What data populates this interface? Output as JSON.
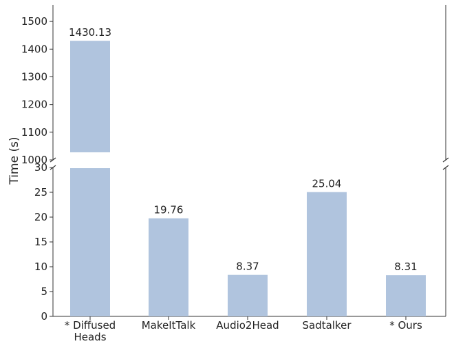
{
  "chart_data": {
    "type": "bar",
    "broken_y_axis": true,
    "categories": [
      "* Diffused\nHeads",
      "MakeItTalk",
      "Audio2Head",
      "Sadtalker",
      "* Ours"
    ],
    "values": [
      1430.13,
      19.76,
      8.37,
      25.04,
      8.31
    ],
    "value_labels": [
      "1430.13",
      "19.76",
      "8.37",
      "25.04",
      "8.31"
    ],
    "ylabel": "Time (s)",
    "ylim_upper": [
      1000,
      1560
    ],
    "ylim_lower": [
      0,
      30
    ],
    "yticks_upper": [
      1000,
      1100,
      1200,
      1300,
      1400,
      1500
    ],
    "yticks_lower": [
      0,
      5,
      10,
      15,
      20,
      25,
      30
    ],
    "bar_color": "#b0c4de",
    "grid": false,
    "legend": "none"
  }
}
